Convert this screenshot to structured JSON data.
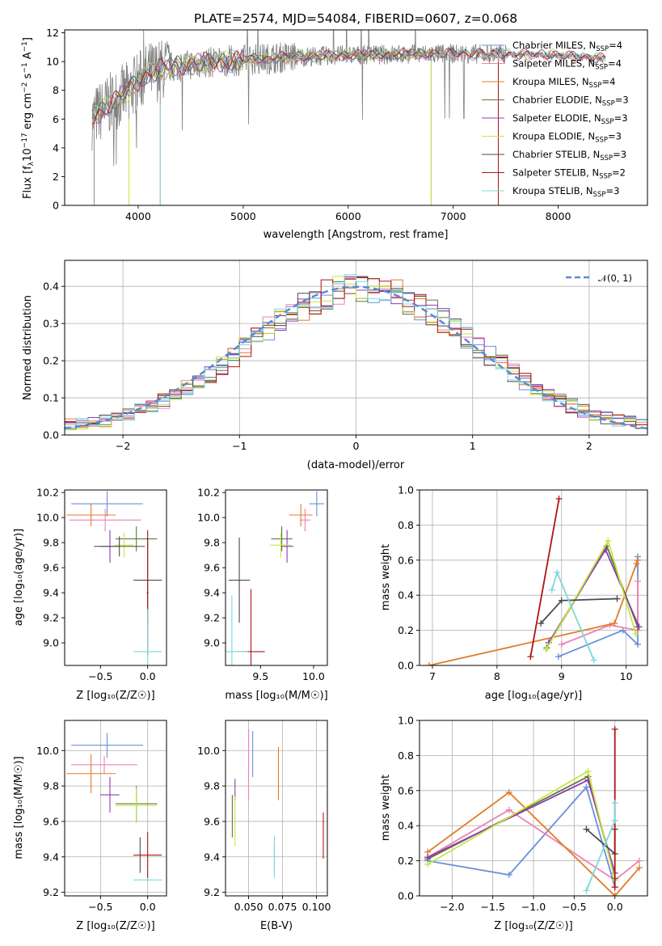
{
  "colors": {
    "chabrier_miles": "#6a8fdc",
    "salpeter_miles": "#ee82b0",
    "kroupa_miles": "#e07b28",
    "chabrier_elodie": "#5a7a3c",
    "salpeter_elodie": "#8e3cb0",
    "kroupa_elodie": "#c8e640",
    "chabrier_stelib": "#4a4a4a",
    "salpeter_stelib": "#b01414",
    "kroupa_stelib": "#7ad8dc",
    "obs_spectrum": "#808080",
    "normal_curve": "#5a8ad6"
  },
  "chart_data": [
    {
      "id": "spectrum",
      "type": "line",
      "title": "PLATE=2574, MJD=54084, FIBERID=0607, z=0.068",
      "xlabel": "wavelength [Angstrom, rest frame]",
      "ylabel_parts": [
        "Flux [f",
        "λ",
        "10",
        "−17",
        " erg cm",
        "−2",
        " s",
        "−1",
        " A",
        "−1",
        "]"
      ],
      "xlim": [
        3300,
        8850
      ],
      "ylim": [
        0,
        12.2
      ],
      "xticks": [
        "4000",
        "5000",
        "6000",
        "7000",
        "8000"
      ],
      "xtick_values": [
        4000,
        5000,
        6000,
        7000,
        8000
      ],
      "yticks": [
        "0",
        "2",
        "4",
        "6",
        "8",
        "10",
        "12"
      ],
      "ytick_values": [
        0,
        2,
        4,
        6,
        8,
        10,
        12
      ],
      "continuum": {
        "x": [
          3560,
          3700,
          3900,
          4000,
          4100,
          4300,
          4600,
          5000,
          5400,
          6000,
          6500,
          7000,
          7500,
          8000,
          8200,
          8450
        ],
        "y": [
          6.0,
          6.9,
          7.9,
          8.6,
          9.2,
          9.6,
          9.9,
          10.1,
          10.3,
          10.45,
          10.5,
          10.55,
          10.5,
          10.45,
          10.3,
          10.2
        ]
      },
      "legend": [
        {
          "label": "Chabrier MILES, N",
          "sub": "SSP",
          "suffix": "=4",
          "key": "chabrier_miles"
        },
        {
          "label": "Salpeter MILES, N",
          "sub": "SSP",
          "suffix": "=4",
          "key": "salpeter_miles"
        },
        {
          "label": "Kroupa MILES, N",
          "sub": "SSP",
          "suffix": "=4",
          "key": "kroupa_miles"
        },
        {
          "label": "Chabrier ELODIE, N",
          "sub": "SSP",
          "suffix": "=3",
          "key": "chabrier_elodie"
        },
        {
          "label": "Salpeter ELODIE, N",
          "sub": "SSP",
          "suffix": "=3",
          "key": "salpeter_elodie"
        },
        {
          "label": "Kroupa ELODIE, N",
          "sub": "SSP",
          "suffix": "=3",
          "key": "kroupa_elodie"
        },
        {
          "label": "Chabrier STELIB, N",
          "sub": "SSP",
          "suffix": "=3",
          "key": "chabrier_stelib"
        },
        {
          "label": "Salpeter STELIB, N",
          "sub": "SSP",
          "suffix": "=2",
          "key": "salpeter_stelib"
        },
        {
          "label": "Kroupa STELIB, N",
          "sub": "SSP",
          "suffix": "=3",
          "key": "kroupa_stelib"
        }
      ]
    },
    {
      "id": "residuals",
      "type": "line",
      "xlabel": "(data-model)/error",
      "ylabel": "Normed distribution",
      "xlim": [
        -2.5,
        2.5
      ],
      "ylim": [
        0,
        0.47
      ],
      "xticks": [
        "−2",
        "−1",
        "0",
        "1",
        "2"
      ],
      "xtick_values": [
        -2,
        -1,
        0,
        1,
        2
      ],
      "yticks": [
        "0.0",
        "0.1",
        "0.2",
        "0.3",
        "0.4"
      ],
      "ytick_values": [
        0,
        0.1,
        0.2,
        0.3,
        0.4
      ],
      "legend_label": "𝒩(0, 1)",
      "bin_width": 0.1,
      "histogram_base": [
        0.03,
        0.032,
        0.035,
        0.038,
        0.045,
        0.055,
        0.066,
        0.078,
        0.092,
        0.108,
        0.126,
        0.145,
        0.166,
        0.188,
        0.212,
        0.236,
        0.26,
        0.284,
        0.306,
        0.328,
        0.347,
        0.364,
        0.378,
        0.389,
        0.397,
        0.4,
        0.397,
        0.389,
        0.378,
        0.364,
        0.347,
        0.328,
        0.306,
        0.284,
        0.26,
        0.236,
        0.212,
        0.188,
        0.166,
        0.145,
        0.126,
        0.108,
        0.092,
        0.078,
        0.066,
        0.055,
        0.045,
        0.038,
        0.035,
        0.032
      ]
    },
    {
      "id": "age_vs_Z",
      "type": "scatter",
      "xlabel": "Z [log₁₀(Z/Z☉)]",
      "ylabel": "age  [log₁₀(age/yr)]",
      "xlim": [
        -0.88,
        0.2
      ],
      "ylim": [
        8.82,
        10.22
      ],
      "xticks": [
        "−0.5",
        "0.0"
      ],
      "xtick_values": [
        -0.5,
        0.0
      ],
      "yticks": [
        "9.0",
        "9.2",
        "9.4",
        "9.6",
        "9.8",
        "10.0",
        "10.2"
      ],
      "ytick_values": [
        9.0,
        9.2,
        9.4,
        9.6,
        9.8,
        10.0,
        10.2
      ],
      "points": [
        {
          "key": "chabrier_miles",
          "x": -0.43,
          "xerr": 0.38,
          "y": 10.11,
          "yerr": 0.1
        },
        {
          "key": "salpeter_miles",
          "x": -0.45,
          "xerr": 0.38,
          "y": 9.98,
          "yerr": 0.09
        },
        {
          "key": "kroupa_miles",
          "x": -0.6,
          "xerr": 0.26,
          "y": 10.02,
          "yerr": 0.09
        },
        {
          "key": "chabrier_elodie",
          "x": -0.12,
          "xerr": 0.22,
          "y": 9.83,
          "yerr": 0.1
        },
        {
          "key": "salpeter_elodie",
          "x": -0.4,
          "xerr": 0.1,
          "y": 9.77,
          "yerr": 0.13
        },
        {
          "key": "kroupa_elodie",
          "x": -0.25,
          "xerr": 0.1,
          "y": 9.78,
          "yerr": 0.1
        },
        {
          "key": "chabrier_stelib",
          "x": -0.3,
          "xerr": 0.27,
          "y": 9.77,
          "yerr": 0.08
        },
        {
          "key": "chabrier_stelib",
          "x": 0.0,
          "xerr": 0.15,
          "y": 9.5,
          "yerr": 0.34
        },
        {
          "key": "salpeter_stelib",
          "x": 0.0,
          "xerr": 0.01,
          "y": 9.4,
          "yerr": 0.5
        },
        {
          "key": "kroupa_stelib",
          "x": 0.0,
          "xerr": 0.15,
          "y": 8.93,
          "yerr": 0.34
        }
      ]
    },
    {
      "id": "age_vs_mass",
      "type": "scatter",
      "xlabel": "mass [log₁₀(M/M☉)]",
      "ylabel": "",
      "xlim": [
        9.17,
        10.13
      ],
      "ylim": [
        8.82,
        10.22
      ],
      "xticks": [
        "9.5",
        "10.0"
      ],
      "xtick_values": [
        9.5,
        10.0
      ],
      "yticks": [
        "9.0",
        "9.2",
        "9.4",
        "9.6",
        "9.8",
        "10.0",
        "10.2"
      ],
      "ytick_values": [
        9.0,
        9.2,
        9.4,
        9.6,
        9.8,
        10.0,
        10.2
      ],
      "points": [
        {
          "key": "chabrier_miles",
          "x": 10.03,
          "xerr": 0.07,
          "y": 10.11,
          "yerr": 0.1
        },
        {
          "key": "salpeter_miles",
          "x": 9.92,
          "xerr": 0.05,
          "y": 9.98,
          "yerr": 0.09
        },
        {
          "key": "kroupa_miles",
          "x": 9.88,
          "xerr": 0.11,
          "y": 10.02,
          "yerr": 0.09
        },
        {
          "key": "chabrier_elodie",
          "x": 9.7,
          "xerr": 0.1,
          "y": 9.83,
          "yerr": 0.1
        },
        {
          "key": "salpeter_elodie",
          "x": 9.75,
          "xerr": 0.06,
          "y": 9.77,
          "yerr": 0.13
        },
        {
          "key": "kroupa_elodie",
          "x": 9.69,
          "xerr": 0.1,
          "y": 9.78,
          "yerr": 0.1
        },
        {
          "key": "chabrier_stelib",
          "x": 9.3,
          "xerr": 0.1,
          "y": 9.5,
          "yerr": 0.34
        },
        {
          "key": "salpeter_stelib",
          "x": 9.41,
          "xerr": 0.13,
          "y": 8.93,
          "yerr": 0.5
        },
        {
          "key": "kroupa_stelib",
          "x": 9.23,
          "xerr": 0.15,
          "y": 8.93,
          "yerr": 0.45
        }
      ]
    },
    {
      "id": "weight_vs_age",
      "type": "line",
      "xlabel": "age  [log₁₀(age/yr)]",
      "ylabel": "mass weight",
      "xlim": [
        6.8,
        10.33
      ],
      "ylim": [
        0,
        1.0
      ],
      "xticks": [
        "7",
        "8",
        "9",
        "10"
      ],
      "xtick_values": [
        7,
        8,
        9,
        10
      ],
      "yticks": [
        "0.0",
        "0.2",
        "0.4",
        "0.6",
        "0.8",
        "1.0"
      ],
      "ytick_values": [
        0,
        0.2,
        0.4,
        0.6,
        0.8,
        1.0
      ],
      "series": [
        {
          "key": "chabrier_miles",
          "x": [
            8.95,
            9.95,
            10.18,
            10.18
          ],
          "y": [
            0.05,
            0.2,
            0.12,
            0.62
          ]
        },
        {
          "key": "salpeter_miles",
          "x": [
            9.0,
            9.75,
            10.18,
            10.18
          ],
          "y": [
            0.12,
            0.23,
            0.2,
            0.48
          ]
        },
        {
          "key": "kroupa_miles",
          "x": [
            6.95,
            9.82,
            10.16,
            10.18
          ],
          "y": [
            0.0,
            0.24,
            0.58,
            0.6
          ]
        },
        {
          "key": "chabrier_elodie",
          "x": [
            8.77,
            9.7,
            10.18
          ],
          "y": [
            0.1,
            0.68,
            0.22
          ]
        },
        {
          "key": "salpeter_elodie",
          "x": [
            8.8,
            9.68,
            10.2
          ],
          "y": [
            0.13,
            0.66,
            0.22
          ]
        },
        {
          "key": "kroupa_elodie",
          "x": [
            8.76,
            9.72,
            10.15
          ],
          "y": [
            0.09,
            0.71,
            0.18
          ]
        },
        {
          "key": "chabrier_stelib",
          "x": [
            8.68,
            9.0,
            9.86
          ],
          "y": [
            0.24,
            0.37,
            0.38
          ]
        },
        {
          "key": "salpeter_stelib",
          "x": [
            8.52,
            8.96
          ],
          "y": [
            0.05,
            0.95
          ]
        },
        {
          "key": "kroupa_stelib",
          "x": [
            8.85,
            8.93,
            9.5
          ],
          "y": [
            0.43,
            0.53,
            0.03
          ]
        }
      ]
    },
    {
      "id": "mass_vs_Z",
      "type": "scatter",
      "xlabel": "Z [log₁₀(Z/Z☉)]",
      "ylabel": "mass [log₁₀(M/M☉)]",
      "xlim": [
        -0.88,
        0.2
      ],
      "ylim": [
        9.18,
        10.17
      ],
      "xticks": [
        "−0.5",
        "0.0"
      ],
      "xtick_values": [
        -0.5,
        0.0
      ],
      "yticks": [
        "9.2",
        "9.4",
        "9.6",
        "9.8",
        "10.0"
      ],
      "ytick_values": [
        9.2,
        9.4,
        9.6,
        9.8,
        10.0
      ],
      "points": [
        {
          "key": "chabrier_miles",
          "x": -0.43,
          "xerr": 0.38,
          "y": 10.03,
          "yerr": 0.07
        },
        {
          "key": "salpeter_miles",
          "x": -0.46,
          "xerr": 0.35,
          "y": 9.92,
          "yerr": 0.05
        },
        {
          "key": "kroupa_miles",
          "x": -0.6,
          "xerr": 0.26,
          "y": 9.87,
          "yerr": 0.11
        },
        {
          "key": "salpeter_elodie",
          "x": -0.4,
          "xerr": 0.1,
          "y": 9.75,
          "yerr": 0.1
        },
        {
          "key": "chabrier_elodie",
          "x": -0.12,
          "xerr": 0.22,
          "y": 9.7,
          "yerr": 0.1
        },
        {
          "key": "kroupa_elodie",
          "x": -0.12,
          "xerr": 0.22,
          "y": 9.69,
          "yerr": 0.1
        },
        {
          "key": "chabrier_stelib",
          "x": -0.08,
          "xerr": 0.01,
          "y": 9.41,
          "yerr": 0.1
        },
        {
          "key": "salpeter_stelib",
          "x": 0.0,
          "xerr": 0.15,
          "y": 9.41,
          "yerr": 0.13
        },
        {
          "key": "kroupa_stelib",
          "x": 0.0,
          "xerr": 0.15,
          "y": 9.27,
          "yerr": 0.01
        }
      ]
    },
    {
      "id": "mass_vs_ebv",
      "type": "scatter",
      "xlabel": "E(B-V)",
      "ylabel": "",
      "xlim": [
        0.033,
        0.108
      ],
      "ylim": [
        9.18,
        10.17
      ],
      "xticks": [
        "0.050",
        "0.075",
        "0.100"
      ],
      "xtick_values": [
        0.05,
        0.075,
        0.1
      ],
      "yticks": [
        "9.2",
        "9.4",
        "9.6",
        "9.8",
        "10.0"
      ],
      "ytick_values": [
        9.2,
        9.4,
        9.6,
        9.8,
        10.0
      ],
      "points": [
        {
          "key": "chabrier_miles",
          "x": 0.053,
          "xerr": 0,
          "y": 9.98,
          "yerr": 0.13
        },
        {
          "key": "salpeter_miles",
          "x": 0.05,
          "xerr": 0,
          "y": 9.92,
          "yerr": 0.2
        },
        {
          "key": "kroupa_miles",
          "x": 0.072,
          "xerr": 0,
          "y": 9.87,
          "yerr": 0.15
        },
        {
          "key": "salpeter_elodie",
          "x": 0.04,
          "xerr": 0,
          "y": 9.78,
          "yerr": 0.06
        },
        {
          "key": "chabrier_elodie",
          "x": 0.038,
          "xerr": 0,
          "y": 9.63,
          "yerr": 0.12
        },
        {
          "key": "kroupa_elodie",
          "x": 0.04,
          "xerr": 0,
          "y": 9.6,
          "yerr": 0.14
        },
        {
          "key": "chabrier_stelib",
          "x": 0.069,
          "xerr": 0,
          "y": 9.4,
          "yerr": 0.08
        },
        {
          "key": "kroupa_stelib",
          "x": 0.069,
          "xerr": 0,
          "y": 9.4,
          "yerr": 0.12
        },
        {
          "key": "salpeter_stelib",
          "x": 0.105,
          "xerr": 0,
          "y": 9.52,
          "yerr": 0.13
        }
      ]
    },
    {
      "id": "weight_vs_Z",
      "type": "line",
      "xlabel": "Z [log₁₀(Z/Z☉)]",
      "ylabel": "mass weight",
      "xlim": [
        -2.4,
        0.4
      ],
      "ylim": [
        0,
        1.0
      ],
      "xticks": [
        "−2.0",
        "−1.5",
        "−1.0",
        "−0.5",
        "0.0"
      ],
      "xtick_values": [
        -2.0,
        -1.5,
        -1.0,
        -0.5,
        0.0
      ],
      "yticks": [
        "0.0",
        "0.2",
        "0.4",
        "0.6",
        "0.8",
        "1.0"
      ],
      "ytick_values": [
        0,
        0.2,
        0.4,
        0.6,
        0.8,
        1.0
      ],
      "series": [
        {
          "key": "chabrier_miles",
          "x": [
            -2.3,
            -1.3,
            -0.35,
            0.0
          ],
          "y": [
            0.2,
            0.12,
            0.62,
            0.05
          ]
        },
        {
          "key": "salpeter_miles",
          "x": [
            -2.3,
            -1.3,
            0.0,
            0.3
          ],
          "y": [
            0.22,
            0.49,
            0.09,
            0.2
          ]
        },
        {
          "key": "kroupa_miles",
          "x": [
            -2.3,
            -1.3,
            0.0,
            0.3
          ],
          "y": [
            0.25,
            0.59,
            0.0,
            0.16
          ]
        },
        {
          "key": "chabrier_elodie",
          "x": [
            -2.3,
            -0.33,
            0.0
          ],
          "y": [
            0.21,
            0.68,
            0.1
          ]
        },
        {
          "key": "salpeter_elodie",
          "x": [
            -2.3,
            -0.33,
            0.0
          ],
          "y": [
            0.22,
            0.66,
            0.13
          ]
        },
        {
          "key": "kroupa_elodie",
          "x": [
            -2.3,
            -0.33,
            0.0
          ],
          "y": [
            0.18,
            0.71,
            0.09
          ]
        },
        {
          "key": "chabrier_stelib",
          "x": [
            -0.35,
            0.0,
            0.0
          ],
          "y": [
            0.38,
            0.24,
            0.38
          ]
        },
        {
          "key": "salpeter_stelib",
          "x": [
            0.0,
            0.0
          ],
          "y": [
            0.05,
            0.95
          ]
        },
        {
          "key": "kroupa_stelib",
          "x": [
            -0.35,
            0.0,
            0.0
          ],
          "y": [
            0.03,
            0.43,
            0.53
          ]
        }
      ]
    }
  ]
}
